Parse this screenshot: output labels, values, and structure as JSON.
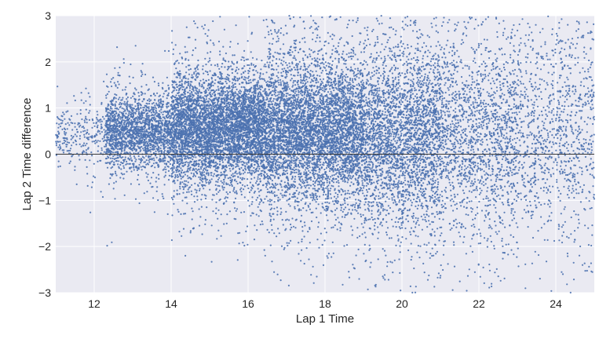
{
  "chart_data": {
    "type": "scatter",
    "title": "",
    "xlabel": "Lap 1 Time",
    "ylabel": "Lap 2 Time difference",
    "xlim": [
      11,
      25
    ],
    "ylim": [
      -3,
      3
    ],
    "xticks": [
      12,
      14,
      16,
      18,
      20,
      22,
      24
    ],
    "xtick_labels": [
      "12",
      "14",
      "16",
      "18",
      "20",
      "22",
      "24"
    ],
    "yticks": [
      -3,
      -2,
      -1,
      0,
      1,
      2,
      3
    ],
    "ytick_labels": [
      "−3",
      "−2",
      "−1",
      "0",
      "1",
      "2",
      "3"
    ],
    "reference_line": {
      "y": 0,
      "color": "#3a3a3a"
    },
    "grid": true,
    "style": {
      "background": "#eaeaf2",
      "grid_color": "#ffffff",
      "marker_color": "#4c72b0"
    },
    "series": [
      {
        "points_shown": 18000,
        "density_profile": [
          {
            "x_range": [
              11.0,
              12.3
            ],
            "relative_density": 0.1,
            "y_center": 0.4,
            "y_spread": 0.3
          },
          {
            "x_range": [
              12.3,
              14.0
            ],
            "relative_density": 0.55,
            "y_center": 0.5,
            "y_spread": 0.38
          },
          {
            "x_range": [
              14.0,
              16.5
            ],
            "relative_density": 1.0,
            "y_center": 0.55,
            "y_spread": 0.55
          },
          {
            "x_range": [
              16.5,
              19.0
            ],
            "relative_density": 0.95,
            "y_center": 0.5,
            "y_spread": 0.75
          },
          {
            "x_range": [
              19.0,
              21.0
            ],
            "relative_density": 0.7,
            "y_center": 0.4,
            "y_spread": 0.95
          },
          {
            "x_range": [
              21.0,
              23.0
            ],
            "relative_density": 0.4,
            "y_center": 0.4,
            "y_spread": 1.1
          },
          {
            "x_range": [
              23.0,
              25.0
            ],
            "relative_density": 0.25,
            "y_center": 0.5,
            "y_spread": 1.2
          }
        ]
      }
    ]
  }
}
